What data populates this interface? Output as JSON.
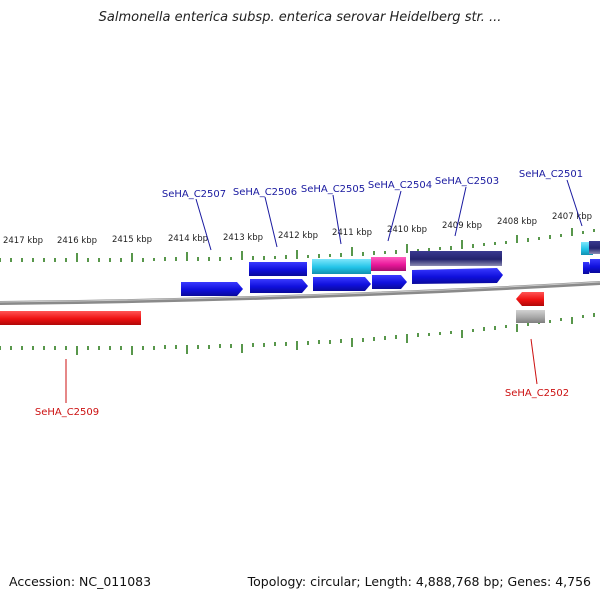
{
  "title": "Salmonella enterica subsp. enterica serovar Heidelberg str. ...",
  "footer": {
    "accession": "Accession: NC_011083",
    "summary": "Topology: circular; Length: 4,888,768 bp; Genes: 4,756"
  },
  "colors": {
    "tick": "#2e7d1e",
    "backbone": "#8a8a8a",
    "gene_blue": "#1010dd",
    "gene_cyan": "#22c4e8",
    "gene_magenta": "#e8189a",
    "gene_navy": "#23236e",
    "gene_red": "#ee1111",
    "gene_gray": "#a9a9a9",
    "label_blue": "#1a1aa0",
    "label_red": "#cc1111"
  },
  "ruler_labels": [
    "2417 kbp",
    "2416 kbp",
    "2415 kbp",
    "2414 kbp",
    "2413 kbp",
    "2412 kbp",
    "2411 kbp",
    "2410 kbp",
    "2409 kbp",
    "2408 kbp",
    "2407 kbp"
  ],
  "gene_labels": [
    "SeHA_C2507",
    "SeHA_C2506",
    "SeHA_C2505",
    "SeHA_C2504",
    "SeHA_C2503",
    "SeHA_C2501",
    "SeHA_C2509",
    "SeHA_C2502"
  ]
}
